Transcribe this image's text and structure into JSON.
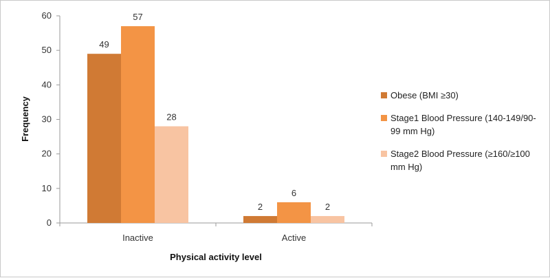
{
  "chart_data": {
    "type": "bar",
    "categories": [
      "Inactive",
      "Active"
    ],
    "series": [
      {
        "name": "Obese (BMI ≥30)",
        "values": [
          49,
          2
        ],
        "color": "#d07a34"
      },
      {
        "name": "Stage1 Blood Pressure (140-149/90-99 mm Hg)",
        "values": [
          57,
          6
        ],
        "color": "#f39445"
      },
      {
        "name": "Stage2 Blood Pressure (≥160/≥100 mm Hg)",
        "values": [
          28,
          2
        ],
        "color": "#f8c4a2"
      }
    ],
    "xlabel": "Physical activity level",
    "ylabel": "Frequency",
    "ylim": [
      0,
      60
    ],
    "yticks": [
      0,
      10,
      20,
      30,
      40,
      50,
      60
    ],
    "grid": false,
    "legend_position": "right"
  }
}
